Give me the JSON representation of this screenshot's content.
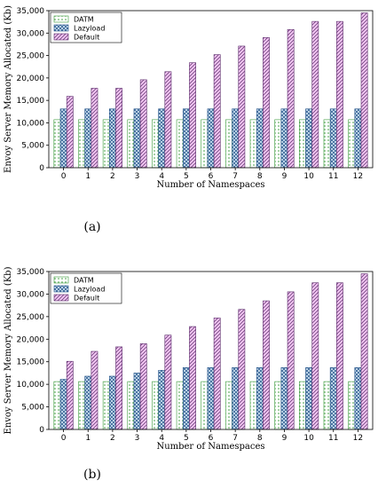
{
  "chart_data": [
    {
      "type": "bar",
      "panel": "(a)",
      "xlabel": "Number of Namespaces",
      "ylabel": "Envoy Server Memory Allocated (Kb)",
      "ylim": [
        0,
        35000
      ],
      "yticks": [
        0,
        5000,
        10000,
        15000,
        20000,
        25000,
        30000,
        35000
      ],
      "ytick_labels": [
        "0",
        "5,000",
        "10,000",
        "15,000",
        "20,000",
        "25,000",
        "30,000",
        "35,000"
      ],
      "categories": [
        "0",
        "1",
        "2",
        "3",
        "4",
        "5",
        "6",
        "7",
        "8",
        "9",
        "10",
        "11",
        "12"
      ],
      "legend_position": "top-left",
      "series": [
        {
          "name": "DATM",
          "color": "#7fc97f",
          "pattern": "dots",
          "values": [
            10700,
            10700,
            10700,
            10700,
            10700,
            10700,
            10700,
            10700,
            10700,
            10700,
            10700,
            10700,
            10700
          ]
        },
        {
          "name": "Lazyload",
          "color": "#4a90c8",
          "pattern": "crosshatch",
          "values": [
            13100,
            13100,
            13100,
            13100,
            13100,
            13100,
            13100,
            13100,
            13100,
            13100,
            13100,
            13100,
            13100
          ]
        },
        {
          "name": "Default",
          "color": "#e8a0e8",
          "pattern": "diagonal",
          "values": [
            15900,
            17700,
            17700,
            19600,
            21400,
            23400,
            25200,
            27100,
            29000,
            30800,
            32600,
            32600,
            34500
          ]
        }
      ]
    },
    {
      "type": "bar",
      "panel": "(b)",
      "xlabel": "Number of Namespaces",
      "ylabel": "Envoy Server Memory Allocated (Kb)",
      "ylim": [
        0,
        35000
      ],
      "yticks": [
        0,
        5000,
        10000,
        15000,
        20000,
        25000,
        30000,
        35000
      ],
      "ytick_labels": [
        "0",
        "5,000",
        "10,000",
        "15,000",
        "20,000",
        "25,000",
        "30,000",
        "35,000"
      ],
      "categories": [
        "0",
        "1",
        "2",
        "3",
        "4",
        "5",
        "6",
        "7",
        "8",
        "9",
        "10",
        "11",
        "12"
      ],
      "legend_position": "top-left",
      "series": [
        {
          "name": "DATM",
          "color": "#7fc97f",
          "pattern": "dots",
          "values": [
            10600,
            10600,
            10600,
            10600,
            10600,
            10600,
            10600,
            10600,
            10600,
            10600,
            10600,
            10600,
            10600
          ]
        },
        {
          "name": "Lazyload",
          "color": "#4a90c8",
          "pattern": "crosshatch",
          "values": [
            11100,
            11800,
            11800,
            12500,
            13100,
            13700,
            13700,
            13700,
            13700,
            13700,
            13700,
            13700,
            13700
          ]
        },
        {
          "name": "Default",
          "color": "#e8a0e8",
          "pattern": "diagonal",
          "values": [
            15100,
            17300,
            18300,
            19000,
            20900,
            22800,
            24700,
            26600,
            28500,
            30500,
            32500,
            32500,
            34500
          ]
        }
      ]
    }
  ]
}
